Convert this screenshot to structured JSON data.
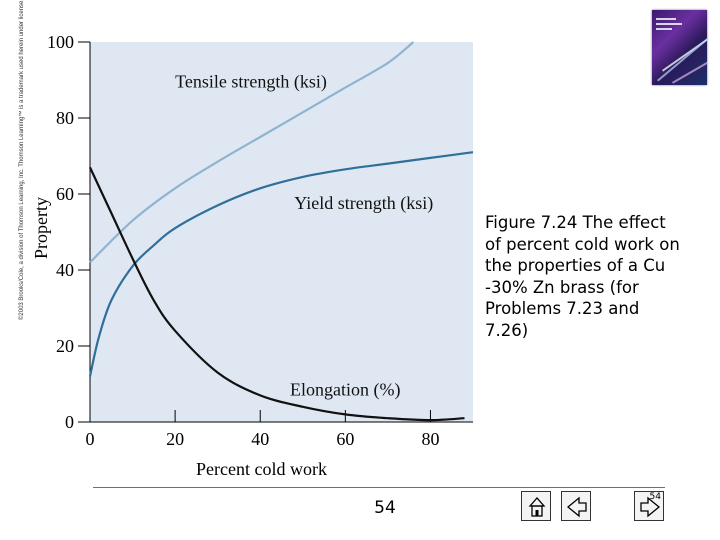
{
  "chart_data": {
    "type": "line",
    "title": "",
    "xlabel": "Percent cold work",
    "ylabel": "Property",
    "xlim": [
      0,
      90
    ],
    "ylim": [
      0,
      100
    ],
    "xticks": [
      0,
      20,
      40,
      60,
      80
    ],
    "yticks": [
      0,
      20,
      40,
      60,
      80,
      100
    ],
    "grid": false,
    "series": [
      {
        "name": "Tensile strength (ksi)",
        "color": "#8fb3d1",
        "x": [
          0,
          10,
          20,
          30,
          40,
          50,
          60,
          70,
          76
        ],
        "y": [
          42,
          53,
          61.5,
          68.5,
          75,
          81.5,
          88,
          94.5,
          100
        ]
      },
      {
        "name": "Yield strength (ksi)",
        "color": "#2f6f9a",
        "x": [
          0,
          2,
          5,
          10,
          15,
          20,
          30,
          40,
          50,
          60,
          70,
          80,
          90
        ],
        "y": [
          12,
          22,
          32,
          41,
          46.5,
          51,
          57,
          61.5,
          64.5,
          66.5,
          68,
          69.5,
          71
        ]
      },
      {
        "name": "Elongation (%)",
        "color": "#111111",
        "x": [
          0,
          5,
          10,
          15,
          20,
          30,
          40,
          50,
          60,
          70,
          80,
          88
        ],
        "y": [
          67,
          55,
          43,
          32,
          24,
          13,
          7,
          4,
          2,
          1,
          0.5,
          1
        ]
      }
    ],
    "annotations": [
      "Tensile strength (ksi)",
      "Yield strength (ksi)",
      "Elongation (%)"
    ]
  },
  "caption": "Figure 7.24 The effect of percent cold work on the properties of a Cu -30% Zn brass (for Problems 7.23 and 7.26)",
  "copyright": "©2003 Brooks/Cole, a division of Thomson Learning, Inc. Thomson Learning™ is a trademark used herein under license.",
  "page_number": "54",
  "nav": {
    "first_icon": "home-icon",
    "prev_icon": "back-arrow-icon",
    "next_icon": "forward-arrow-icon",
    "page_label": "54"
  },
  "colors": {
    "plot_background": "#dfe8f2",
    "divider": "#c0504d"
  }
}
